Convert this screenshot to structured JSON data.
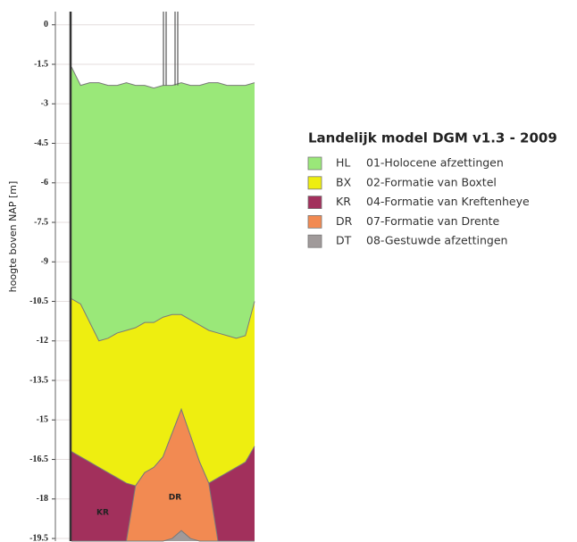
{
  "chart_data": {
    "type": "layers",
    "title": "Landelijk model DGM v1.3 - 2009",
    "y_label": "hoogte boven NAP [m]",
    "categories": [
      null,
      null,
      null,
      null,
      null,
      null,
      null,
      null,
      null,
      null,
      null,
      null,
      null,
      null,
      null,
      null,
      null,
      null,
      null,
      null,
      null
    ],
    "ylim": [
      -19.6,
      0.5
    ],
    "yticks": [
      0,
      -1.5,
      -3,
      -4.5,
      -6,
      -7.5,
      -9,
      -10.5,
      -12,
      -13.5,
      -15,
      -16.5,
      -18,
      -19.5
    ],
    "grid": true,
    "series": [
      {
        "name": "HL",
        "description": "01-Holocene afzettingen",
        "color": "#9ae879",
        "values": [
          -1.6,
          -2.3,
          -2.2,
          -2.2,
          -2.3,
          -2.3,
          -2.2,
          -2.3,
          -2.3,
          -2.4,
          -2.3,
          -2.3,
          -2.2,
          -2.3,
          -2.3,
          -2.2,
          -2.2,
          -2.3,
          -2.3,
          -2.3,
          -2.2
        ]
      },
      {
        "name": "BX",
        "description": "02-Formatie van Boxtel",
        "color": "#eeee10",
        "values": [
          -10.4,
          -10.6,
          -11.3,
          -12.0,
          -11.9,
          -11.7,
          -11.6,
          -11.5,
          -11.3,
          -11.3,
          -11.1,
          -11.0,
          -11.0,
          -11.2,
          -11.4,
          -11.6,
          -11.7,
          -11.8,
          -11.9,
          -11.8,
          -10.5
        ]
      },
      {
        "name": "KR",
        "description": "04-Formatie van Kreftenheye",
        "color": "#a2305c",
        "values": [
          -16.2,
          -16.4,
          -16.6,
          -16.8,
          -17.0,
          -17.2,
          -17.4,
          -17.5,
          -17.0,
          -16.8,
          -16.4,
          -15.5,
          -14.6,
          -15.6,
          -16.6,
          -17.4,
          -17.2,
          -17.0,
          -16.8,
          -16.6,
          -16.0
        ]
      },
      {
        "name": "DR",
        "description": "07-Formatie van Drente",
        "color": "#f28a52",
        "values": [
          -19.6,
          -19.6,
          -19.6,
          -19.6,
          -19.6,
          -19.6,
          -19.6,
          -17.5,
          -17.0,
          -16.8,
          -16.4,
          -15.5,
          -14.6,
          -15.6,
          -16.6,
          -17.4,
          -19.6,
          -19.6,
          -19.6,
          -19.6,
          -19.6
        ]
      },
      {
        "name": "DT",
        "description": "08-Gestuwde afzettingen",
        "color": "#a09a9a",
        "values": [
          -19.6,
          -19.6,
          -19.6,
          -19.6,
          -19.6,
          -19.6,
          -19.6,
          -19.6,
          -19.6,
          -19.6,
          -19.6,
          -19.5,
          -19.2,
          -19.5,
          -19.6,
          -19.6,
          -19.6,
          -19.6,
          -19.6,
          -19.6,
          -19.6
        ]
      }
    ]
  }
}
